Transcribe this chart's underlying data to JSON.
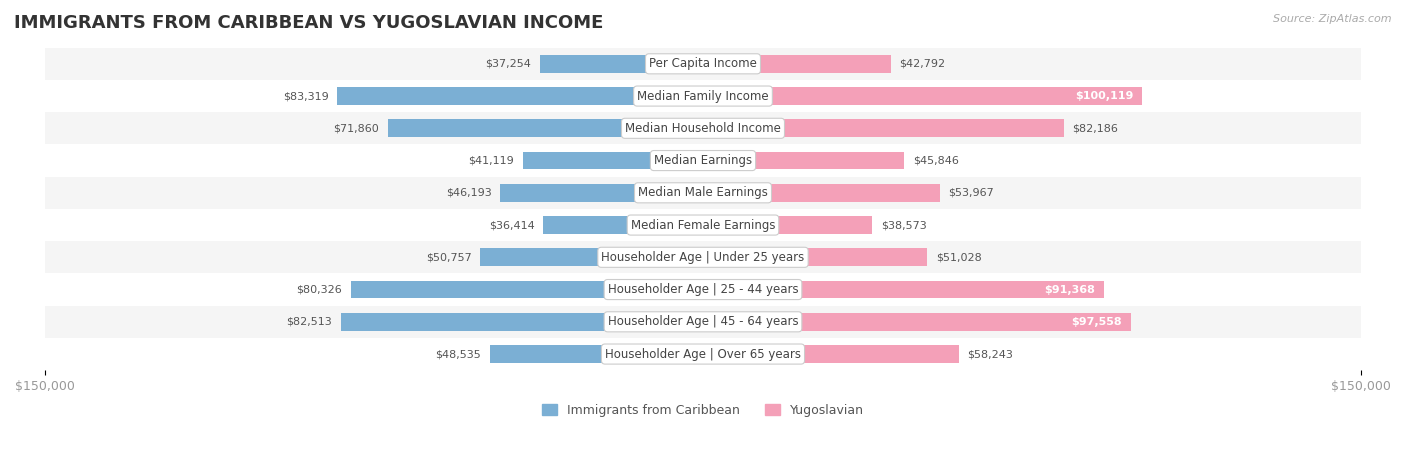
{
  "title": "IMMIGRANTS FROM CARIBBEAN VS YUGOSLAVIAN INCOME",
  "source": "Source: ZipAtlas.com",
  "categories": [
    "Per Capita Income",
    "Median Family Income",
    "Median Household Income",
    "Median Earnings",
    "Median Male Earnings",
    "Median Female Earnings",
    "Householder Age | Under 25 years",
    "Householder Age | 25 - 44 years",
    "Householder Age | 45 - 64 years",
    "Householder Age | Over 65 years"
  ],
  "caribbean_values": [
    37254,
    83319,
    71860,
    41119,
    46193,
    36414,
    50757,
    80326,
    82513,
    48535
  ],
  "yugoslavian_values": [
    42792,
    100119,
    82186,
    45846,
    53967,
    38573,
    51028,
    91368,
    97558,
    58243
  ],
  "caribbean_color": "#7bafd4",
  "caribbean_color_dark": "#5b8fbf",
  "yugoslavian_color": "#f4a0b8",
  "yugoslavian_color_dark": "#e8789a",
  "max_value": 150000,
  "bar_height": 0.55,
  "row_bg_colors": [
    "#f5f5f5",
    "#ffffff"
  ],
  "label_fontsize": 8.5,
  "title_fontsize": 13,
  "axis_label_color": "#999999",
  "value_fontsize": 8.0,
  "legend_fontsize": 9,
  "category_fontsize": 8.5,
  "background_color": "#ffffff",
  "row_padding": 0.15
}
